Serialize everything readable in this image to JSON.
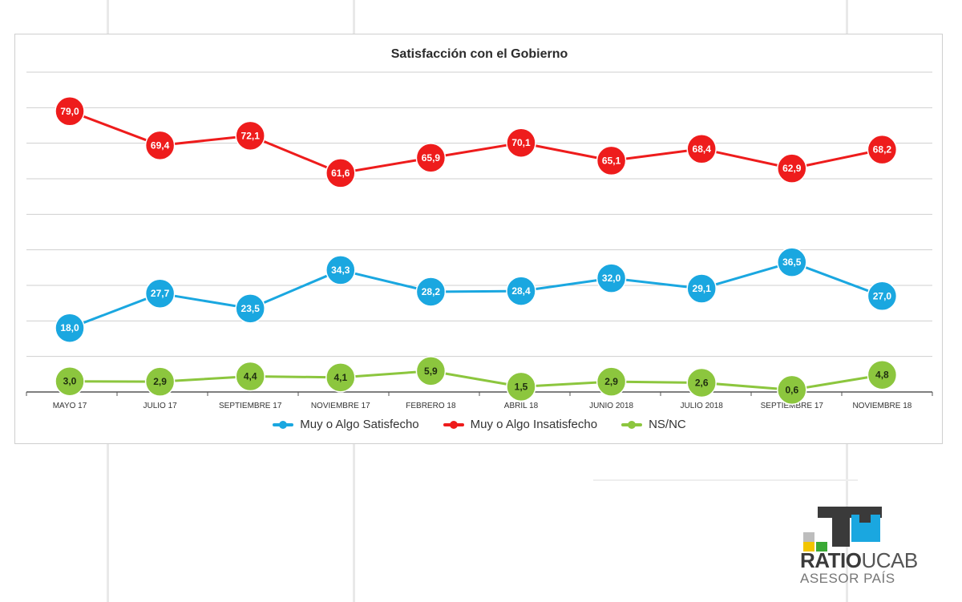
{
  "chart_data": {
    "type": "line",
    "title": "Satisfacción con el Gobierno",
    "categories": [
      "MAYO 17",
      "JULIO 17",
      "SEPTIEMBRE 17",
      "NOVIEMBRE 17",
      "FEBRERO 18",
      "ABRIL 18",
      "JUNIO 2018",
      "JULIO 2018",
      "SEPTIEMBRE 17",
      "NOVIEMBRE 18"
    ],
    "ylim": [
      0,
      90
    ],
    "grid": true,
    "legend_position": "bottom",
    "series": [
      {
        "name": "Muy o Algo Satisfecho",
        "color": "#1aa7e0",
        "values": [
          18.0,
          27.7,
          23.5,
          34.3,
          28.2,
          28.4,
          32.0,
          29.1,
          36.5,
          27.0
        ],
        "labels": [
          "18,0",
          "27,7",
          "23,5",
          "34,3",
          "28,2",
          "28,4",
          "32,0",
          "29,1",
          "36,5",
          "27,0"
        ]
      },
      {
        "name": "Muy o Algo Insatisfecho",
        "color": "#ee1c1c",
        "values": [
          79.0,
          69.4,
          72.1,
          61.6,
          65.9,
          70.1,
          65.1,
          68.4,
          62.9,
          68.2
        ],
        "labels": [
          "79,0",
          "69,4",
          "72,1",
          "61,6",
          "65,9",
          "70,1",
          "65,1",
          "68,4",
          "62,9",
          "68,2"
        ]
      },
      {
        "name": "NS/NC",
        "color": "#8cc63e",
        "values": [
          3.0,
          2.9,
          4.4,
          4.1,
          5.9,
          1.5,
          2.9,
          2.6,
          0.6,
          4.8
        ],
        "labels": [
          "3,0",
          "2,9",
          "4,4",
          "4,1",
          "5,9",
          "1,5",
          "2,9",
          "2,6",
          "0,6",
          "4,8"
        ]
      }
    ]
  },
  "logo": {
    "brand_bold": "RATIO",
    "brand_light": "UCAB",
    "tagline": "ASESOR PAÍS",
    "colors": {
      "dark": "#3a3a3a",
      "blue": "#1aa7e0",
      "yellow": "#f2c500",
      "green": "#3aa935",
      "grey": "#bdbdbd"
    }
  }
}
